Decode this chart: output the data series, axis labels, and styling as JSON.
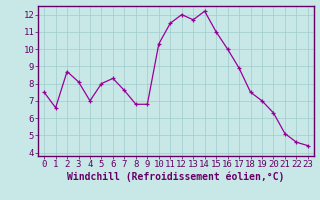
{
  "x": [
    0,
    1,
    2,
    3,
    4,
    5,
    6,
    7,
    8,
    9,
    10,
    11,
    12,
    13,
    14,
    15,
    16,
    17,
    18,
    19,
    20,
    21,
    22,
    23
  ],
  "y": [
    7.5,
    6.6,
    8.7,
    8.1,
    7.0,
    8.0,
    8.3,
    7.6,
    6.8,
    6.8,
    10.3,
    11.5,
    12.0,
    11.7,
    12.2,
    11.0,
    10.0,
    8.9,
    7.5,
    7.0,
    6.3,
    5.1,
    4.6,
    4.4
  ],
  "line_color": "#990099",
  "marker_color": "#990099",
  "bg_color": "#c8e8e8",
  "grid_color": "#a0cccc",
  "border_color": "#660066",
  "xlabel": "Windchill (Refroidissement éolien,°C)",
  "xlim": [
    -0.5,
    23.5
  ],
  "ylim": [
    3.8,
    12.5
  ],
  "yticks": [
    4,
    5,
    6,
    7,
    8,
    9,
    10,
    11,
    12
  ],
  "xticks": [
    0,
    1,
    2,
    3,
    4,
    5,
    6,
    7,
    8,
    9,
    10,
    11,
    12,
    13,
    14,
    15,
    16,
    17,
    18,
    19,
    20,
    21,
    22,
    23
  ],
  "tick_label_color": "#660066",
  "axis_color": "#660066",
  "font_size": 6.5,
  "xlabel_font_size": 7
}
